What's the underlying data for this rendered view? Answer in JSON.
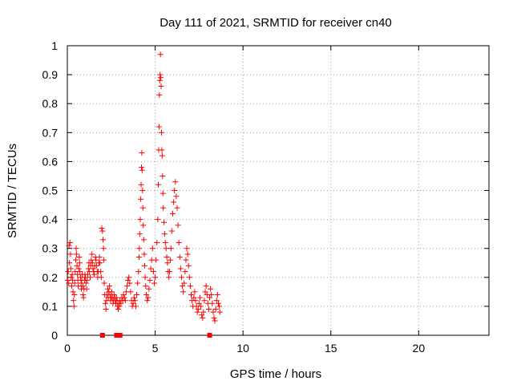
{
  "chart_data": {
    "type": "scatter",
    "title": "Day 111 of 2021, SRMTID for receiver cn40",
    "xlabel": "GPS time / hours",
    "ylabel": "SRMTID / TECUs",
    "xlim": [
      0,
      24
    ],
    "ylim": [
      0,
      1
    ],
    "xticks": [
      0,
      5,
      10,
      15,
      20
    ],
    "yticks": [
      0,
      0.1,
      0.2,
      0.3,
      0.4,
      0.5,
      0.6,
      0.7,
      0.8,
      0.9,
      1
    ],
    "xtick_labels": [
      "0",
      "5",
      "10",
      "15",
      "20"
    ],
    "ytick_labels": [
      "0",
      "0.1",
      "0.2",
      "0.3",
      "0.4",
      "0.5",
      "0.6",
      "0.7",
      "0.8",
      "0.9",
      "1"
    ],
    "grid": true,
    "marker": "plus",
    "color": "#ff0000",
    "series": [
      {
        "name": "SRMTID",
        "points": [
          [
            0.02,
            0.19
          ],
          [
            0.05,
            0.22
          ],
          [
            0.08,
            0.18
          ],
          [
            0.1,
            0.31
          ],
          [
            0.12,
            0.25
          ],
          [
            0.15,
            0.32
          ],
          [
            0.18,
            0.28
          ],
          [
            0.2,
            0.23
          ],
          [
            0.22,
            0.2
          ],
          [
            0.25,
            0.17
          ],
          [
            0.28,
            0.21
          ],
          [
            0.3,
            0.19
          ],
          [
            0.32,
            0.15
          ],
          [
            0.35,
            0.12
          ],
          [
            0.38,
            0.1
          ],
          [
            0.4,
            0.14
          ],
          [
            0.42,
            0.18
          ],
          [
            0.45,
            0.22
          ],
          [
            0.48,
            0.26
          ],
          [
            0.5,
            0.3
          ],
          [
            0.52,
            0.28
          ],
          [
            0.55,
            0.24
          ],
          [
            0.58,
            0.21
          ],
          [
            0.6,
            0.19
          ],
          [
            0.62,
            0.17
          ],
          [
            0.65,
            0.23
          ],
          [
            0.68,
            0.27
          ],
          [
            0.7,
            0.25
          ],
          [
            0.72,
            0.22
          ],
          [
            0.75,
            0.2
          ],
          [
            0.78,
            0.18
          ],
          [
            0.8,
            0.16
          ],
          [
            0.82,
            0.19
          ],
          [
            0.85,
            0.21
          ],
          [
            0.88,
            0.17
          ],
          [
            0.9,
            0.14
          ],
          [
            0.92,
            0.13
          ],
          [
            0.95,
            0.16
          ],
          [
            0.98,
            0.19
          ],
          [
            1.0,
            0.21
          ],
          [
            1.03,
            0.2
          ],
          [
            1.06,
            0.18
          ],
          [
            1.1,
            0.16
          ],
          [
            1.13,
            0.19
          ],
          [
            1.16,
            0.21
          ],
          [
            1.2,
            0.23
          ],
          [
            1.23,
            0.25
          ],
          [
            1.26,
            0.22
          ],
          [
            1.3,
            0.2
          ],
          [
            1.33,
            0.24
          ],
          [
            1.36,
            0.26
          ],
          [
            1.4,
            0.28
          ],
          [
            1.43,
            0.25
          ],
          [
            1.46,
            0.23
          ],
          [
            1.5,
            0.22
          ],
          [
            1.53,
            0.21
          ],
          [
            1.56,
            0.24
          ],
          [
            1.6,
            0.27
          ],
          [
            1.63,
            0.26
          ],
          [
            1.66,
            0.24
          ],
          [
            1.7,
            0.22
          ],
          [
            1.73,
            0.2
          ],
          [
            1.76,
            0.22
          ],
          [
            1.8,
            0.25
          ],
          [
            1.83,
            0.27
          ],
          [
            1.86,
            0.25
          ],
          [
            1.9,
            0.22
          ],
          [
            1.93,
            0.2
          ],
          [
            1.96,
            0.37
          ],
          [
            2.0,
            0.36
          ],
          [
            2.03,
            0.33
          ],
          [
            2.06,
            0.3
          ],
          [
            2.08,
            0.26
          ],
          [
            2.1,
            0.18
          ],
          [
            2.13,
            0.14
          ],
          [
            2.16,
            0.11
          ],
          [
            2.2,
            0.09
          ],
          [
            2.23,
            0.12
          ],
          [
            2.26,
            0.14
          ],
          [
            2.3,
            0.16
          ],
          [
            2.33,
            0.13
          ],
          [
            2.36,
            0.15
          ],
          [
            2.4,
            0.17
          ],
          [
            2.43,
            0.14
          ],
          [
            2.46,
            0.12
          ],
          [
            2.5,
            0.13
          ],
          [
            2.53,
            0.15
          ],
          [
            2.56,
            0.13
          ],
          [
            2.6,
            0.11
          ],
          [
            2.63,
            0.12
          ],
          [
            2.66,
            0.14
          ],
          [
            2.7,
            0.13
          ],
          [
            2.73,
            0.12
          ],
          [
            2.76,
            0.11
          ],
          [
            2.8,
            0.13
          ],
          [
            2.83,
            0.12
          ],
          [
            2.86,
            0.1
          ],
          [
            2.9,
            0.09
          ],
          [
            2.93,
            0.11
          ],
          [
            2.96,
            0.1
          ],
          [
            3.0,
            0.12
          ],
          [
            3.05,
            0.11
          ],
          [
            3.1,
            0.13
          ],
          [
            3.15,
            0.12
          ],
          [
            3.2,
            0.14
          ],
          [
            3.25,
            0.13
          ],
          [
            3.3,
            0.12
          ],
          [
            3.35,
            0.15
          ],
          [
            3.4,
            0.17
          ],
          [
            3.45,
            0.19
          ],
          [
            3.5,
            0.2
          ],
          [
            3.55,
            0.18
          ],
          [
            3.6,
            0.15
          ],
          [
            3.65,
            0.12
          ],
          [
            3.7,
            0.1
          ],
          [
            3.75,
            0.11
          ],
          [
            3.8,
            0.13
          ],
          [
            3.85,
            0.12
          ],
          [
            3.9,
            0.1
          ],
          [
            3.95,
            0.14
          ],
          [
            4.0,
            0.18
          ],
          [
            4.05,
            0.22
          ],
          [
            4.08,
            0.27
          ],
          [
            4.1,
            0.3
          ],
          [
            4.12,
            0.35
          ],
          [
            4.15,
            0.4
          ],
          [
            4.18,
            0.47
          ],
          [
            4.2,
            0.52
          ],
          [
            4.22,
            0.58
          ],
          [
            4.24,
            0.63
          ],
          [
            4.26,
            0.57
          ],
          [
            4.28,
            0.5
          ],
          [
            4.3,
            0.44
          ],
          [
            4.32,
            0.38
          ],
          [
            4.35,
            0.33
          ],
          [
            4.38,
            0.28
          ],
          [
            4.4,
            0.24
          ],
          [
            4.43,
            0.2
          ],
          [
            4.46,
            0.17
          ],
          [
            4.5,
            0.14
          ],
          [
            4.55,
            0.12
          ],
          [
            4.6,
            0.13
          ],
          [
            4.65,
            0.16
          ],
          [
            4.7,
            0.19
          ],
          [
            4.75,
            0.23
          ],
          [
            4.8,
            0.26
          ],
          [
            4.85,
            0.3
          ],
          [
            4.9,
            0.22
          ],
          [
            4.95,
            0.18
          ],
          [
            5.0,
            0.2
          ],
          [
            5.05,
            0.26
          ],
          [
            5.1,
            0.32
          ],
          [
            5.15,
            0.4
          ],
          [
            5.18,
            0.52
          ],
          [
            5.2,
            0.64
          ],
          [
            5.22,
            0.72
          ],
          [
            5.24,
            0.83
          ],
          [
            5.26,
            0.88
          ],
          [
            5.28,
            0.9
          ],
          [
            5.3,
            0.97
          ],
          [
            5.32,
            0.89
          ],
          [
            5.34,
            0.86
          ],
          [
            5.36,
            0.7
          ],
          [
            5.38,
            0.64
          ],
          [
            5.4,
            0.62
          ],
          [
            5.42,
            0.55
          ],
          [
            5.44,
            0.49
          ],
          [
            5.46,
            0.44
          ],
          [
            5.5,
            0.39
          ],
          [
            5.54,
            0.35
          ],
          [
            5.58,
            0.32
          ],
          [
            5.62,
            0.3
          ],
          [
            5.66,
            0.27
          ],
          [
            5.7,
            0.25
          ],
          [
            5.74,
            0.22
          ],
          [
            5.78,
            0.2
          ],
          [
            5.82,
            0.22
          ],
          [
            5.86,
            0.26
          ],
          [
            5.9,
            0.3
          ],
          [
            5.95,
            0.36
          ],
          [
            6.0,
            0.42
          ],
          [
            6.05,
            0.46
          ],
          [
            6.1,
            0.5
          ],
          [
            6.15,
            0.53
          ],
          [
            6.2,
            0.48
          ],
          [
            6.25,
            0.44
          ],
          [
            6.3,
            0.38
          ],
          [
            6.35,
            0.32
          ],
          [
            6.4,
            0.27
          ],
          [
            6.45,
            0.23
          ],
          [
            6.5,
            0.2
          ],
          [
            6.55,
            0.17
          ],
          [
            6.6,
            0.15
          ],
          [
            6.65,
            0.18
          ],
          [
            6.7,
            0.22
          ],
          [
            6.75,
            0.26
          ],
          [
            6.8,
            0.3
          ],
          [
            6.85,
            0.28
          ],
          [
            6.9,
            0.24
          ],
          [
            6.95,
            0.2
          ],
          [
            7.0,
            0.17
          ],
          [
            7.05,
            0.14
          ],
          [
            7.1,
            0.12
          ],
          [
            7.15,
            0.1
          ],
          [
            7.2,
            0.13
          ],
          [
            7.25,
            0.15
          ],
          [
            7.3,
            0.12
          ],
          [
            7.35,
            0.1
          ],
          [
            7.4,
            0.08
          ],
          [
            7.45,
            0.09
          ],
          [
            7.5,
            0.11
          ],
          [
            7.55,
            0.13
          ],
          [
            7.6,
            0.1
          ],
          [
            7.65,
            0.07
          ],
          [
            7.7,
            0.06
          ],
          [
            7.75,
            0.08
          ],
          [
            7.8,
            0.12
          ],
          [
            7.85,
            0.15
          ],
          [
            7.9,
            0.17
          ],
          [
            7.95,
            0.14
          ],
          [
            8.0,
            0.11
          ],
          [
            8.05,
            0.09
          ],
          [
            8.1,
            0.13
          ],
          [
            8.15,
            0.16
          ],
          [
            8.2,
            0.14
          ],
          [
            8.25,
            0.11
          ],
          [
            8.3,
            0.08
          ],
          [
            8.35,
            0.06
          ],
          [
            8.4,
            0.05
          ],
          [
            8.45,
            0.09
          ],
          [
            8.5,
            0.12
          ],
          [
            8.55,
            0.14
          ],
          [
            8.6,
            0.11
          ],
          [
            8.65,
            0.1
          ],
          [
            8.68,
            0.08
          ]
        ]
      }
    ],
    "zero_markers_x": [
      2.0,
      2.8,
      3.0,
      8.1
    ]
  }
}
